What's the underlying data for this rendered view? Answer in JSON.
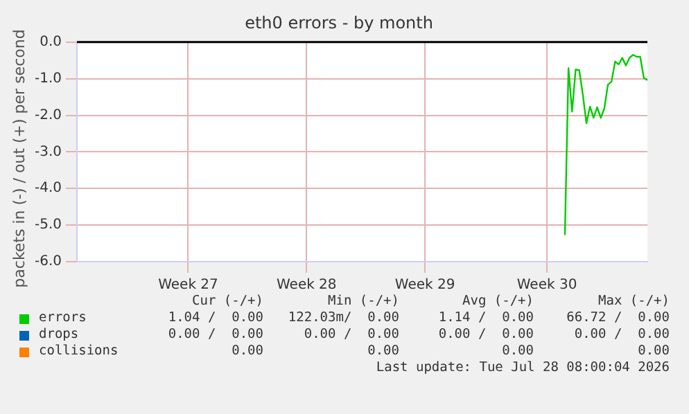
{
  "chart_data": {
    "type": "line",
    "title": "eth0 errors - by month",
    "ylabel": "packets in (-) / out (+) per second",
    "categories": [
      null,
      null,
      null,
      null,
      null,
      null,
      null,
      null,
      null,
      null,
      null,
      null,
      null,
      null,
      null,
      null,
      null,
      null,
      null,
      null,
      null,
      null,
      null,
      null,
      null,
      null,
      null,
      null,
      null,
      null,
      null,
      "Week 27",
      null,
      null,
      null,
      null,
      null,
      null,
      null,
      null,
      null,
      null,
      null,
      null,
      null,
      null,
      null,
      null,
      null,
      null,
      null,
      null,
      null,
      null,
      null,
      null,
      null,
      null,
      null,
      null,
      null,
      null,
      null,
      null,
      "Week 28",
      null,
      null,
      null,
      null,
      null,
      null,
      null,
      null,
      null,
      null,
      null,
      null,
      null,
      null,
      null,
      null,
      null,
      null,
      null,
      null,
      null,
      null,
      null,
      null,
      null,
      null,
      null,
      null,
      null,
      null,
      null,
      null,
      "Week 29",
      null,
      null,
      null,
      null,
      null,
      null,
      null,
      null,
      null,
      null,
      null,
      null,
      null,
      null,
      null,
      null,
      null,
      null,
      null,
      null,
      null,
      null,
      null,
      null,
      null,
      null,
      null,
      null,
      null,
      null,
      null,
      null,
      null,
      "Week 30",
      null,
      null,
      null,
      null,
      null,
      null,
      null,
      null,
      null,
      null,
      null,
      null,
      null,
      null,
      null,
      null,
      null,
      null,
      null,
      null,
      null,
      null,
      null,
      null,
      null,
      null,
      null,
      null
    ],
    "ylim": [
      -6,
      0
    ],
    "yticks": [
      {
        "value": -6,
        "label": "-6.0"
      },
      {
        "value": -5,
        "label": "-5.0"
      },
      {
        "value": -4,
        "label": "-4.0"
      },
      {
        "value": -3,
        "label": "-3.0"
      },
      {
        "value": -2,
        "label": "-2.0"
      },
      {
        "value": -1,
        "label": "-1.0"
      },
      {
        "value": 0,
        "label": "0.0"
      }
    ],
    "grid": true,
    "legend": "bottom",
    "marker": "none",
    "line_style": "solid",
    "ref_lines": [
      {
        "axis": "y",
        "value": 0,
        "color": "#000000"
      }
    ],
    "series": [
      {
        "name": "errors",
        "color": "#00cc00",
        "values": [
          null,
          null,
          null,
          null,
          null,
          null,
          null,
          null,
          null,
          null,
          null,
          null,
          null,
          null,
          null,
          null,
          null,
          null,
          null,
          null,
          null,
          null,
          null,
          null,
          null,
          null,
          null,
          null,
          null,
          null,
          null,
          null,
          null,
          null,
          null,
          null,
          null,
          null,
          null,
          null,
          null,
          null,
          null,
          null,
          null,
          null,
          null,
          null,
          null,
          null,
          null,
          null,
          null,
          null,
          null,
          null,
          null,
          null,
          null,
          null,
          null,
          null,
          null,
          null,
          null,
          null,
          null,
          null,
          null,
          null,
          null,
          null,
          null,
          null,
          null,
          null,
          null,
          null,
          null,
          null,
          null,
          null,
          null,
          null,
          null,
          null,
          null,
          null,
          null,
          null,
          null,
          null,
          null,
          null,
          null,
          null,
          null,
          null,
          null,
          null,
          null,
          null,
          null,
          null,
          null,
          null,
          null,
          null,
          null,
          null,
          null,
          null,
          null,
          null,
          null,
          null,
          null,
          null,
          null,
          null,
          null,
          null,
          null,
          null,
          null,
          null,
          null,
          null,
          null,
          null,
          null,
          null,
          null,
          null,
          null,
          null,
          -5.27,
          -0.71,
          -1.9,
          -0.75,
          -0.77,
          -1.44,
          -2.22,
          -1.76,
          -2.07,
          -1.78,
          -2.07,
          -1.81,
          -1.16,
          -1.08,
          -0.53,
          -0.61,
          -0.43,
          -0.64,
          -0.43,
          -0.35,
          -0.4,
          -0.4,
          -0.98,
          -1.04
        ]
      },
      {
        "name": "drops",
        "color": "#0066b3",
        "values": [
          null,
          null,
          null,
          null,
          null,
          null,
          null,
          null,
          null,
          null,
          null,
          null,
          null,
          null,
          null,
          null,
          null,
          null,
          null,
          null,
          null,
          null,
          null,
          null,
          null,
          null,
          null,
          null,
          null,
          null,
          null,
          null,
          null,
          null,
          null,
          null,
          null,
          null,
          null,
          null,
          null,
          null,
          null,
          null,
          null,
          null,
          null,
          null,
          null,
          null,
          null,
          null,
          null,
          null,
          null,
          null,
          null,
          null,
          null,
          null,
          null,
          null,
          null,
          null,
          null,
          null,
          null,
          null,
          null,
          null,
          null,
          null,
          null,
          null,
          null,
          null,
          null,
          null,
          null,
          null,
          null,
          null,
          null,
          null,
          null,
          null,
          null,
          null,
          null,
          null,
          null,
          null,
          null,
          null,
          null,
          null,
          null,
          null,
          null,
          null,
          null,
          null,
          null,
          null,
          null,
          null,
          null,
          null,
          null,
          null,
          null,
          null,
          null,
          null,
          null,
          null,
          null,
          null,
          null,
          null,
          null,
          null,
          null,
          null,
          null,
          null,
          null,
          null,
          null,
          null,
          null,
          null,
          null,
          null,
          null,
          null,
          null,
          null,
          null,
          null,
          null,
          null,
          null,
          null,
          null,
          null,
          null,
          null,
          null,
          null,
          null,
          null,
          null,
          null,
          null,
          null,
          null,
          null,
          null,
          null
        ]
      },
      {
        "name": "collisions",
        "color": "#ff8000",
        "values": [
          null,
          null,
          null,
          null,
          null,
          null,
          null,
          null,
          null,
          null,
          null,
          null,
          null,
          null,
          null,
          null,
          null,
          null,
          null,
          null,
          null,
          null,
          null,
          null,
          null,
          null,
          null,
          null,
          null,
          null,
          null,
          null,
          null,
          null,
          null,
          null,
          null,
          null,
          null,
          null,
          null,
          null,
          null,
          null,
          null,
          null,
          null,
          null,
          null,
          null,
          null,
          null,
          null,
          null,
          null,
          null,
          null,
          null,
          null,
          null,
          null,
          null,
          null,
          null,
          null,
          null,
          null,
          null,
          null,
          null,
          null,
          null,
          null,
          null,
          null,
          null,
          null,
          null,
          null,
          null,
          null,
          null,
          null,
          null,
          null,
          null,
          null,
          null,
          null,
          null,
          null,
          null,
          null,
          null,
          null,
          null,
          null,
          null,
          null,
          null,
          null,
          null,
          null,
          null,
          null,
          null,
          null,
          null,
          null,
          null,
          null,
          null,
          null,
          null,
          null,
          null,
          null,
          null,
          null,
          null,
          null,
          null,
          null,
          null,
          null,
          null,
          null,
          null,
          null,
          null,
          null,
          null,
          null,
          null,
          null,
          null,
          null,
          null,
          null,
          null,
          null,
          null,
          null,
          null,
          null,
          null,
          null,
          null,
          null,
          null,
          null,
          null,
          null,
          null,
          null,
          null,
          null,
          null,
          null,
          null
        ]
      }
    ],
    "annotations": [
      "Cur (-/+)",
      "Min (-/+)",
      "Avg (-/+)",
      "Max (-/+)",
      "1.04 /  0.00",
      "122.03m/  0.00",
      "1.14 /  0.00",
      "66.72 /  0.00",
      "0.00 /  0.00",
      "0.00 /  0.00",
      "0.00 /  0.00",
      "0.00 /  0.00",
      "0.00",
      "0.00",
      "0.00",
      "0.00",
      "Last update: Tue Jul 28 08:00:04 2026"
    ]
  }
}
